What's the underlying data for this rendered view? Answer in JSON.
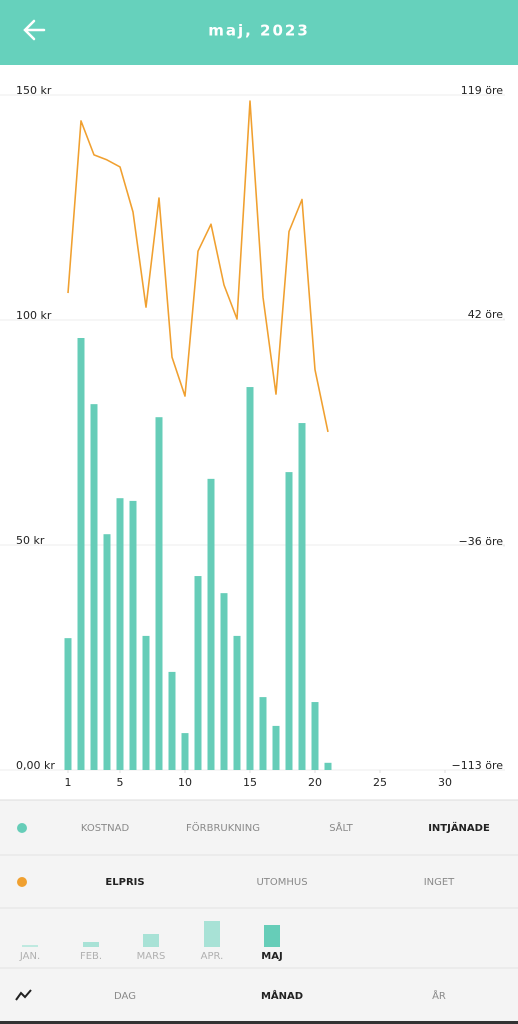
{
  "header": {
    "title": "maj, 2023"
  },
  "chart_data": {
    "type": "combo",
    "x": [
      1,
      2,
      3,
      4,
      5,
      6,
      7,
      8,
      9,
      10,
      11,
      12,
      13,
      14,
      15,
      16,
      17,
      18,
      19,
      20,
      21
    ],
    "xlim": [
      0,
      31
    ],
    "xticks": [
      1,
      5,
      10,
      15,
      20,
      25,
      30
    ],
    "ylim": [
      0,
      150
    ],
    "yticks": [
      {
        "value": 0,
        "label": "0,00 kr"
      },
      {
        "value": 50,
        "label": "50 kr"
      },
      {
        "value": 100,
        "label": "100 kr"
      },
      {
        "value": 150,
        "label": "150 kr"
      }
    ],
    "y2lim": [
      -113,
      119
    ],
    "y2ticks": [
      {
        "value": -113,
        "label": "−113 öre"
      },
      {
        "value": -36,
        "label": "−36 öre"
      },
      {
        "value": 42,
        "label": "42 öre"
      },
      {
        "value": 119,
        "label": "119 öre"
      }
    ],
    "grid": true,
    "series": [
      {
        "type": "bar",
        "color": "#66cdb8",
        "values": [
          29.3,
          96,
          81.3,
          52.4,
          60.4,
          59.8,
          29.8,
          78.4,
          21.8,
          8.2,
          43.1,
          64.7,
          39.3,
          29.8,
          85.1,
          16.2,
          9.8,
          66.2,
          77.1,
          15.1,
          1.6
        ]
      },
      {
        "type": "line",
        "axis": "y2",
        "color": "#f0a030",
        "values": [
          50.9,
          110.1,
          98.4,
          96.7,
          94.3,
          78.8,
          46.1,
          83.6,
          28.9,
          15.5,
          65.3,
          74.6,
          53.7,
          42.0,
          116.9,
          49.5,
          16.2,
          72.1,
          83.1,
          24.6,
          3.2
        ]
      }
    ]
  },
  "controls": {
    "metric_color": "#66cdb8",
    "metric_options": [
      "KOSTNAD",
      "FÖRBRUKNING",
      "SÅLT",
      "INTJÄNADE"
    ],
    "selected_metric": 3,
    "overlay_color": "#f0a030",
    "overlay_options": [
      "ELPRIS",
      "UTOMHUS",
      "INGET"
    ],
    "selected_overlay": 0,
    "months": [
      "JAN.",
      "FEB.",
      "MARS",
      "APR.",
      "MAJ"
    ],
    "selected_month": 4,
    "periods": [
      "DAG",
      "MÅNAD",
      "ÅR"
    ],
    "selected_period": 1
  }
}
